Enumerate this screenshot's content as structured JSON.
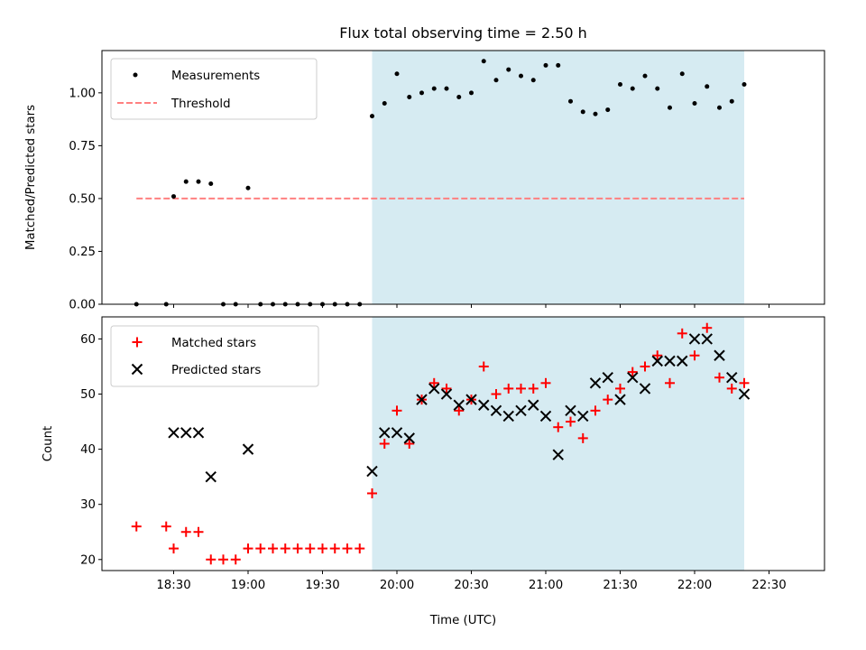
{
  "chart_data": [
    {
      "type": "scatter",
      "title": "Flux total observing time = 2.50 h",
      "xlabel": "",
      "ylabel": "Matched/Predicted stars",
      "ylim": [
        0,
        1.2
      ],
      "yticks": [
        "0.00",
        "0.25",
        "0.50",
        "0.75",
        "1.00"
      ],
      "x_axis_unit": "minutes after 18:00 UTC",
      "x_tick_labels_hidden": true,
      "shaded_region": {
        "start": "19:50",
        "end": "22:20",
        "color": "#add8e6"
      },
      "legend_position": "upper left",
      "legend": [
        "Measurements",
        "Threshold"
      ],
      "series": [
        {
          "name": "Measurements",
          "marker": "dot",
          "color": "#000000",
          "x": [
            "18:15",
            "18:27",
            "18:30",
            "18:35",
            "18:40",
            "18:45",
            "18:50",
            "18:55",
            "19:00",
            "19:05",
            "19:10",
            "19:15",
            "19:20",
            "19:25",
            "19:30",
            "19:35",
            "19:40",
            "19:45",
            "19:50",
            "19:55",
            "20:00",
            "20:05",
            "20:10",
            "20:15",
            "20:20",
            "20:25",
            "20:30",
            "20:35",
            "20:40",
            "20:45",
            "20:50",
            "20:55",
            "21:00",
            "21:05",
            "21:10",
            "21:15",
            "21:20",
            "21:25",
            "21:30",
            "21:35",
            "21:40",
            "21:45",
            "21:50",
            "21:55",
            "22:00",
            "22:05",
            "22:10",
            "22:15",
            "22:20"
          ],
          "y": [
            0.0,
            0.0,
            0.51,
            0.58,
            0.58,
            0.57,
            0.0,
            0.0,
            0.55,
            0.0,
            0.0,
            0.0,
            0.0,
            0.0,
            0.0,
            0.0,
            0.0,
            0.0,
            0.89,
            0.95,
            1.09,
            0.98,
            1.0,
            1.02,
            1.02,
            0.98,
            1.0,
            1.15,
            1.06,
            1.11,
            1.08,
            1.06,
            1.13,
            1.13,
            0.96,
            0.91,
            0.9,
            0.92,
            1.04,
            1.02,
            1.08,
            1.02,
            0.93,
            1.09,
            0.95,
            1.03,
            0.93,
            0.96,
            1.04
          ]
        },
        {
          "name": "Threshold",
          "style": "dashed",
          "color": "#ff8080",
          "x": [
            "18:15",
            "22:20"
          ],
          "y": [
            0.5,
            0.5
          ]
        }
      ]
    },
    {
      "type": "scatter",
      "title": "",
      "xlabel": "Time (UTC)",
      "ylabel": "Count",
      "ylim": [
        18,
        64
      ],
      "yticks": [
        "20",
        "30",
        "40",
        "50",
        "60"
      ],
      "xticks": [
        "18:30",
        "19:00",
        "19:30",
        "20:00",
        "20:30",
        "21:00",
        "21:30",
        "22:00",
        "22:30"
      ],
      "shaded_region": {
        "start": "19:50",
        "end": "22:20",
        "color": "#add8e6"
      },
      "legend_position": "upper left",
      "legend": [
        "Matched stars",
        "Predicted stars"
      ],
      "series": [
        {
          "name": "Matched stars",
          "marker": "plus",
          "color": "#ff0000",
          "x": [
            "18:15",
            "18:27",
            "18:30",
            "18:35",
            "18:40",
            "18:45",
            "18:50",
            "18:55",
            "19:00",
            "19:05",
            "19:10",
            "19:15",
            "19:20",
            "19:25",
            "19:30",
            "19:35",
            "19:40",
            "19:45",
            "19:50",
            "19:55",
            "20:00",
            "20:05",
            "20:10",
            "20:15",
            "20:20",
            "20:25",
            "20:30",
            "20:35",
            "20:40",
            "20:45",
            "20:50",
            "20:55",
            "21:00",
            "21:05",
            "21:10",
            "21:15",
            "21:20",
            "21:25",
            "21:30",
            "21:35",
            "21:40",
            "21:45",
            "21:50",
            "21:55",
            "22:00",
            "22:05",
            "22:10",
            "22:15",
            "22:20"
          ],
          "y": [
            26,
            26,
            22,
            25,
            25,
            20,
            20,
            20,
            22,
            22,
            22,
            22,
            22,
            22,
            22,
            22,
            22,
            22,
            32,
            41,
            47,
            41,
            49,
            52,
            51,
            47,
            49,
            55,
            50,
            51,
            51,
            51,
            52,
            44,
            45,
            42,
            47,
            49,
            51,
            54,
            55,
            57,
            52,
            61,
            57,
            62,
            53,
            51,
            52
          ]
        },
        {
          "name": "Predicted stars",
          "marker": "x",
          "color": "#000000",
          "x": [
            "18:30",
            "18:35",
            "18:40",
            "18:45",
            "19:00",
            "19:50",
            "19:55",
            "20:00",
            "20:05",
            "20:10",
            "20:15",
            "20:20",
            "20:25",
            "20:30",
            "20:35",
            "20:40",
            "20:45",
            "20:50",
            "20:55",
            "21:00",
            "21:05",
            "21:10",
            "21:15",
            "21:20",
            "21:25",
            "21:30",
            "21:35",
            "21:40",
            "21:45",
            "21:50",
            "21:55",
            "22:00",
            "22:05",
            "22:10",
            "22:15",
            "22:20"
          ],
          "y": [
            43,
            43,
            43,
            35,
            40,
            36,
            43,
            43,
            42,
            49,
            51,
            50,
            48,
            49,
            48,
            47,
            46,
            47,
            48,
            46,
            39,
            47,
            46,
            52,
            53,
            49,
            53,
            51,
            56,
            56,
            56,
            60,
            60,
            57,
            53,
            50
          ]
        }
      ]
    }
  ]
}
